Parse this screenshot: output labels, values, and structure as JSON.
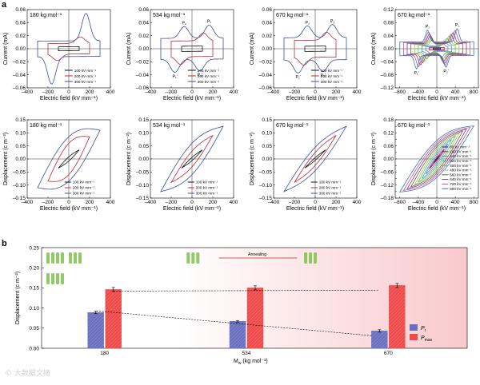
{
  "figure": {
    "panel_a_label": "a",
    "panel_b_label": "b",
    "watermark": "© 大数据文摘"
  },
  "colors": {
    "black": "#111111",
    "red": "#c0282f",
    "blue": "#3a4fa0",
    "bar_pr": "#6a6fbf",
    "bar_pmax": "#ee4a4a",
    "shade": "#f9c9cc"
  },
  "chart_data": [
    {
      "id": "a-current-180",
      "type": "line",
      "annotation": "180 kg mol⁻¹",
      "xlabel": "Electric field (kV mm⁻¹)",
      "ylabel": "Current (mA)",
      "xlim": [
        -400,
        400
      ],
      "ylim": [
        -0.06,
        0.06
      ],
      "xticks": [
        -400,
        -200,
        0,
        200,
        400
      ],
      "yticks": [
        -0.06,
        -0.04,
        -0.02,
        0,
        0.02,
        0.04,
        0.06
      ],
      "ytick_labels": [
        "–0.06",
        "–0.04",
        "–0.02",
        "0.00",
        "0.02",
        "0.04",
        "0.06"
      ],
      "xtick_labels": [
        "–400",
        "–200",
        "0",
        "200",
        "400"
      ],
      "legend": [
        "100 kV mm⁻¹",
        "200 kV mm⁻¹",
        "300 kV mm⁻¹"
      ],
      "series": [
        {
          "Emax": 100,
          "base": 0.003,
          "slope": 6e-05,
          "peak": 0.0,
          "pw": 40,
          "loop": "current"
        },
        {
          "Emax": 200,
          "base": 0.008,
          "slope": 4e-05,
          "peak": 0.01,
          "pw": 60,
          "loop": "current"
        },
        {
          "Emax": 300,
          "base": 0.012,
          "slope": 5e-05,
          "peak": 0.042,
          "pw": 55,
          "loop": "current"
        }
      ]
    },
    {
      "id": "a-current-534",
      "type": "line",
      "annotation": "534 kg mol⁻¹",
      "xlabel": "Electric field (kV mm⁻¹)",
      "ylabel": "Current (mA)",
      "xlim": [
        -400,
        400
      ],
      "ylim": [
        -0.06,
        0.06
      ],
      "xticks": [
        -400,
        -200,
        0,
        200,
        400
      ],
      "yticks": [
        -0.06,
        -0.04,
        -0.02,
        0,
        0.02,
        0.04,
        0.06
      ],
      "ytick_labels": [
        "–0.06",
        "–0.04",
        "–0.02",
        "0.00",
        "0.02",
        "0.04",
        "0.06"
      ],
      "xtick_labels": [
        "–400",
        "–200",
        "0",
        "200",
        "400"
      ],
      "peak_labels": [
        "P₁",
        "P₂",
        "P₁'",
        "P₂'"
      ],
      "legend": [
        "100 kV mm⁻¹",
        "200 kV mm⁻¹",
        "300 kV mm⁻¹"
      ],
      "series": [
        {
          "Emax": 100,
          "base": 0.004,
          "slope": 7e-05,
          "peak": 0.0,
          "pw": 40,
          "loop": "current"
        },
        {
          "Emax": 200,
          "base": 0.012,
          "slope": 5e-05,
          "peak": 0.012,
          "pw": 55,
          "loop": "current"
        },
        {
          "Emax": 300,
          "base": 0.016,
          "slope": 4e-05,
          "peak": 0.02,
          "pw": 60,
          "loop": "current2"
        }
      ]
    },
    {
      "id": "a-current-670",
      "type": "line",
      "annotation": "670 kg mol⁻¹",
      "xlabel": "Electric field (kV mm⁻¹)",
      "ylabel": "Current (mA)",
      "xlim": [
        -400,
        400
      ],
      "ylim": [
        -0.06,
        0.06
      ],
      "xticks": [
        -400,
        -200,
        0,
        200,
        400
      ],
      "yticks": [
        -0.06,
        -0.04,
        -0.02,
        0,
        0.02,
        0.04,
        0.06
      ],
      "ytick_labels": [
        "–0.06",
        "–0.04",
        "–0.02",
        "0.00",
        "0.02",
        "0.04",
        "0.06"
      ],
      "xtick_labels": [
        "–400",
        "–200",
        "0",
        "200",
        "400"
      ],
      "peak_labels": [
        "P₁",
        "P₂",
        "P₁'",
        "P₂'"
      ],
      "legend": [
        "100 kV mm⁻¹",
        "200 kV mm⁻¹",
        "300 kV mm⁻¹"
      ],
      "series": [
        {
          "Emax": 100,
          "base": 0.004,
          "slope": 7e-05,
          "peak": 0.0,
          "pw": 40,
          "loop": "current"
        },
        {
          "Emax": 200,
          "base": 0.013,
          "slope": 5e-05,
          "peak": 0.012,
          "pw": 55,
          "loop": "current"
        },
        {
          "Emax": 300,
          "base": 0.017,
          "slope": 4e-05,
          "peak": 0.02,
          "pw": 60,
          "loop": "current2"
        }
      ]
    },
    {
      "id": "a-current-670-wide",
      "type": "line",
      "annotation": "670 kg mol⁻¹",
      "xlabel": "Electric field (kV mm⁻¹)",
      "ylabel": "Current (mA)",
      "xlim": [
        -900,
        900
      ],
      "ylim": [
        -0.12,
        0.12
      ],
      "xticks": [
        -800,
        -400,
        0,
        400,
        800
      ],
      "yticks": [
        -0.12,
        -0.08,
        -0.04,
        0,
        0.04,
        0.08,
        0.12
      ],
      "ytick_labels": [
        "–0.12",
        "–0.08",
        "–0.04",
        "0.00",
        "0.04",
        "0.08",
        "0.12"
      ],
      "xtick_labels": [
        "–800",
        "–400",
        "0",
        "400",
        "800"
      ],
      "peak_labels": [
        "P₁",
        "P₂",
        "P₁'",
        "P₂'"
      ],
      "series": [
        {
          "Emax": 80,
          "base": 0.002,
          "slope": 3e-05,
          "peak": 0.0,
          "pw": 40,
          "loop": "current"
        },
        {
          "Emax": 160,
          "base": 0.004,
          "slope": 3e-05,
          "peak": 0.0,
          "pw": 40,
          "loop": "current"
        },
        {
          "Emax": 240,
          "base": 0.006,
          "slope": 3e-05,
          "peak": 0.01,
          "pw": 50,
          "loop": "current"
        },
        {
          "Emax": 320,
          "base": 0.009,
          "slope": 3e-05,
          "peak": 0.015,
          "pw": 55,
          "loop": "current"
        },
        {
          "Emax": 400,
          "base": 0.011,
          "slope": 3e-05,
          "peak": 0.02,
          "pw": 60,
          "loop": "current2"
        },
        {
          "Emax": 480,
          "base": 0.013,
          "slope": 3e-05,
          "peak": 0.025,
          "pw": 60,
          "loop": "current2"
        },
        {
          "Emax": 560,
          "base": 0.015,
          "slope": 3e-05,
          "peak": 0.028,
          "pw": 60,
          "loop": "current2"
        },
        {
          "Emax": 640,
          "base": 0.017,
          "slope": 3e-05,
          "peak": 0.032,
          "pw": 60,
          "loop": "current2"
        },
        {
          "Emax": 720,
          "base": 0.019,
          "slope": 3e-05,
          "peak": 0.036,
          "pw": 60,
          "loop": "current2"
        },
        {
          "Emax": 800,
          "base": 0.021,
          "slope": 3e-05,
          "peak": 0.04,
          "pw": 60,
          "loop": "current2"
        }
      ]
    },
    {
      "id": "a-disp-180",
      "type": "line",
      "annotation": "180 kg mol⁻¹",
      "xlabel": "Electric field (kV mm⁻¹)",
      "ylabel": "Displacement (c m⁻²)",
      "xlim": [
        -400,
        400
      ],
      "ylim": [
        -0.15,
        0.15
      ],
      "xticks": [
        -400,
        -200,
        0,
        200,
        400
      ],
      "yticks": [
        -0.15,
        -0.1,
        -0.05,
        0,
        0.05,
        0.1,
        0.15
      ],
      "ytick_labels": [
        "–0.15",
        "–0.10",
        "–0.05",
        "0.00",
        "0.05",
        "0.10",
        "0.15"
      ],
      "xtick_labels": [
        "–400",
        "–200",
        "0",
        "200",
        "400"
      ],
      "legend": [
        "100 kV mm⁻¹",
        "200 kV mm⁻¹",
        "300 kV mm⁻¹"
      ],
      "series": [
        {
          "Emax": 100,
          "Dmax": 0.035,
          "Pr": 0.008,
          "sharp": 60
        },
        {
          "Emax": 200,
          "Dmax": 0.085,
          "Pr": 0.06,
          "sharp": 70
        },
        {
          "Emax": 300,
          "Dmax": 0.11,
          "Pr": 0.085,
          "sharp": 70
        }
      ]
    },
    {
      "id": "a-disp-534",
      "type": "line",
      "annotation": "534 kg mol⁻¹",
      "xlabel": "Electric field (kV mm⁻¹)",
      "ylabel": "Displacement (c m⁻²)",
      "xlim": [
        -400,
        400
      ],
      "ylim": [
        -0.15,
        0.15
      ],
      "xticks": [
        -400,
        -200,
        0,
        200,
        400
      ],
      "yticks": [
        -0.15,
        -0.1,
        -0.05,
        0,
        0.05,
        0.1,
        0.15
      ],
      "ytick_labels": [
        "–0.15",
        "–0.10",
        "–0.05",
        "0.00",
        "0.05",
        "0.10",
        "0.15"
      ],
      "xtick_labels": [
        "–400",
        "–200",
        "0",
        "200",
        "400"
      ],
      "legend": [
        "100 kV mm⁻¹",
        "200 kV mm⁻¹",
        "300 kV mm⁻¹"
      ],
      "series": [
        {
          "Emax": 100,
          "Dmax": 0.035,
          "Pr": 0.006,
          "sharp": 60
        },
        {
          "Emax": 200,
          "Dmax": 0.09,
          "Pr": 0.03,
          "sharp": 80
        },
        {
          "Emax": 300,
          "Dmax": 0.125,
          "Pr": 0.06,
          "sharp": 90
        }
      ]
    },
    {
      "id": "a-disp-670",
      "type": "line",
      "annotation": "670 kg mol⁻¹",
      "xlabel": "Electric field (kV mm⁻¹)",
      "ylabel": "Displacement (c m⁻²)",
      "xlim": [
        -400,
        400
      ],
      "ylim": [
        -0.15,
        0.15
      ],
      "xticks": [
        -400,
        -200,
        0,
        200,
        400
      ],
      "yticks": [
        -0.15,
        -0.1,
        -0.05,
        0,
        0.05,
        0.1,
        0.15
      ],
      "ytick_labels": [
        "–0.15",
        "–0.10",
        "–0.05",
        "0.00",
        "0.05",
        "0.10",
        "0.15"
      ],
      "xtick_labels": [
        "–400",
        "–200",
        "0",
        "200",
        "400"
      ],
      "legend": [
        "100 kV mm⁻¹",
        "200 kV mm⁻¹",
        "300 kV mm⁻¹"
      ],
      "series": [
        {
          "Emax": 100,
          "Dmax": 0.035,
          "Pr": 0.005,
          "sharp": 60
        },
        {
          "Emax": 200,
          "Dmax": 0.09,
          "Pr": 0.025,
          "sharp": 85
        },
        {
          "Emax": 300,
          "Dmax": 0.125,
          "Pr": 0.045,
          "sharp": 95
        }
      ]
    },
    {
      "id": "a-disp-670-wide",
      "type": "line",
      "annotation": "670 kg mol⁻¹",
      "xlabel": "Electric field (kV mm⁻¹)",
      "ylabel": "Displacement (c m⁻²)",
      "xlim": [
        -900,
        900
      ],
      "ylim": [
        -0.18,
        0.18
      ],
      "xticks": [
        -800,
        -400,
        0,
        400,
        800
      ],
      "yticks": [
        -0.18,
        -0.15,
        -0.12,
        -0.09,
        -0.06,
        -0.03,
        0,
        0.03,
        0.06,
        0.09,
        0.12,
        0.15,
        0.18
      ],
      "ytick_labels": [
        "–0.18",
        "–0.15",
        "–0.12",
        "–0.09",
        "–0.06",
        "–0.03",
        "0.00",
        "0.03",
        "0.06",
        "0.09",
        "0.12",
        "0.15",
        "0.18"
      ],
      "xtick_labels": [
        "–800",
        "–400",
        "0",
        "400",
        "800"
      ],
      "legend": [
        "80 kV mm⁻¹",
        "160 kV mm⁻¹",
        "240 kV mm⁻¹",
        "320 kV mm⁻¹",
        "400 kV mm⁻¹",
        "480 kV mm⁻¹",
        "560 kV mm⁻¹",
        "640 kV mm⁻¹",
        "720 kV mm⁻¹",
        "800 kV mm⁻¹"
      ],
      "series": [
        {
          "Emax": 80,
          "Dmax": 0.02,
          "Pr": 0.002,
          "sharp": 80
        },
        {
          "Emax": 160,
          "Dmax": 0.045,
          "Pr": 0.006,
          "sharp": 100
        },
        {
          "Emax": 240,
          "Dmax": 0.07,
          "Pr": 0.015,
          "sharp": 120
        },
        {
          "Emax": 320,
          "Dmax": 0.09,
          "Pr": 0.025,
          "sharp": 130
        },
        {
          "Emax": 400,
          "Dmax": 0.105,
          "Pr": 0.035,
          "sharp": 140
        },
        {
          "Emax": 480,
          "Dmax": 0.118,
          "Pr": 0.045,
          "sharp": 150
        },
        {
          "Emax": 560,
          "Dmax": 0.128,
          "Pr": 0.055,
          "sharp": 160
        },
        {
          "Emax": 640,
          "Dmax": 0.137,
          "Pr": 0.065,
          "sharp": 170
        },
        {
          "Emax": 720,
          "Dmax": 0.145,
          "Pr": 0.075,
          "sharp": 180
        },
        {
          "Emax": 800,
          "Dmax": 0.152,
          "Pr": 0.085,
          "sharp": 190
        }
      ]
    },
    {
      "id": "b-bars",
      "type": "bar",
      "xlabel": "Mw (kg mol⁻¹)",
      "ylabel": "Displacement (c m⁻²)",
      "xlabel_main": "M",
      "xlabel_sub": "w",
      "xlabel_rest": " (kg mol⁻¹)",
      "categories": [
        "180",
        "534",
        "670"
      ],
      "ylim": [
        0,
        0.25
      ],
      "yticks": [
        0,
        0.05,
        0.1,
        0.15,
        0.2,
        0.25
      ],
      "ytick_labels": [
        "0.00",
        "0.05",
        "0.10",
        "0.15",
        "0.20",
        "0.25"
      ],
      "annotation": "Annealing",
      "legend": [
        "Pr",
        "Pmax"
      ],
      "legend_main": [
        "P",
        "P"
      ],
      "legend_sub": [
        "r",
        "max"
      ],
      "series": [
        {
          "name": "Pr",
          "values": [
            0.089,
            0.067,
            0.043
          ],
          "errors": [
            0.003,
            0.002,
            0.003
          ]
        },
        {
          "name": "Pmax",
          "values": [
            0.146,
            0.15,
            0.156
          ],
          "errors": [
            0.005,
            0.005,
            0.005
          ]
        }
      ]
    }
  ]
}
